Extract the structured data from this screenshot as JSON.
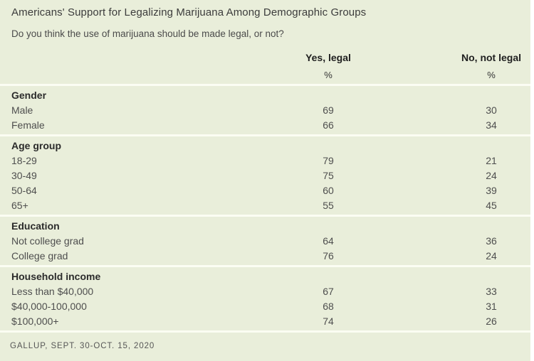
{
  "colors": {
    "page_background": "#ffffff",
    "panel_background": "#e9eeda",
    "divider": "#fbfdf3",
    "title_text": "#3c3c3c",
    "body_text": "#4e4e4e",
    "emphasis_text": "#2b2b2b"
  },
  "chart_data": {
    "type": "table",
    "title": "Americans' Support for Legalizing Marijuana Among Demographic Groups",
    "subtitle": "Do you think the use of marijuana should be made legal, or not?",
    "columns": [
      {
        "label": "Yes, legal",
        "unit": "%"
      },
      {
        "label": "No, not legal",
        "unit": "%"
      }
    ],
    "sections": [
      {
        "header": "Gender",
        "rows": [
          {
            "label": "Male",
            "yes": 69,
            "no": 30
          },
          {
            "label": "Female",
            "yes": 66,
            "no": 34
          }
        ]
      },
      {
        "header": "Age group",
        "rows": [
          {
            "label": "18-29",
            "yes": 79,
            "no": 21
          },
          {
            "label": "30-49",
            "yes": 75,
            "no": 24
          },
          {
            "label": "50-64",
            "yes": 60,
            "no": 39
          },
          {
            "label": "65+",
            "yes": 55,
            "no": 45
          }
        ]
      },
      {
        "header": "Education",
        "rows": [
          {
            "label": "Not college grad",
            "yes": 64,
            "no": 36
          },
          {
            "label": "College grad",
            "yes": 76,
            "no": 24
          }
        ]
      },
      {
        "header": "Household income",
        "rows": [
          {
            "label": "Less than $40,000",
            "yes": 67,
            "no": 33
          },
          {
            "label": "$40,000-100,000",
            "yes": 68,
            "no": 31
          },
          {
            "label": "$100,000+",
            "yes": 74,
            "no": 26
          }
        ]
      }
    ],
    "source": "GALLUP, SEPT. 30-OCT. 15, 2020"
  }
}
